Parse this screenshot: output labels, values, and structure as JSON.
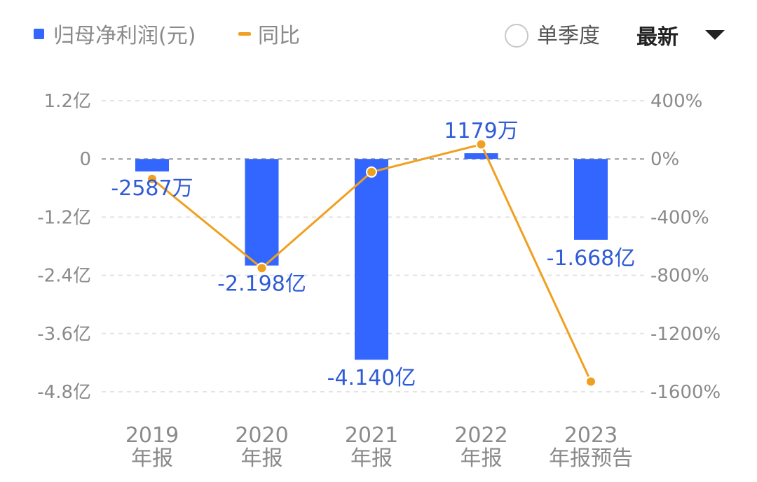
{
  "legend": {
    "bar_series_label": "归母净利润(元)",
    "line_series_label": "同比"
  },
  "controls": {
    "single_quarter_label": "单季度",
    "latest_label": "最新",
    "dropdown_icon": "caret-down-icon"
  },
  "colors": {
    "bar": "#3366ff",
    "line": "#f0a020",
    "data_label": "#2f5bd6"
  },
  "chart_data": {
    "type": "bar",
    "categories": [
      [
        "2019",
        "年报"
      ],
      [
        "2020",
        "年报"
      ],
      [
        "2021",
        "年报"
      ],
      [
        "2022",
        "年报"
      ],
      [
        "2023",
        "年报预告"
      ]
    ],
    "series": [
      {
        "name": "归母净利润(元)",
        "type": "bar",
        "axis": "left",
        "values": [
          -25870000,
          -219800000,
          -414000000,
          11790000,
          -166800000
        ],
        "labels": [
          "-2587万",
          "-2.198亿",
          "-4.140亿",
          "1179万",
          "-1.668亿"
        ]
      },
      {
        "name": "同比",
        "type": "line",
        "axis": "right",
        "values": [
          -137,
          -750,
          -90,
          100,
          -1530
        ]
      }
    ],
    "y_left": {
      "ylim": [
        -480000000,
        120000000
      ],
      "ticks": [
        120000000,
        0,
        -120000000,
        -240000000,
        -360000000,
        -480000000
      ],
      "tick_labels": [
        "1.2亿",
        "0",
        "-1.2亿",
        "-2.4亿",
        "-3.6亿",
        "-4.8亿"
      ]
    },
    "y_right": {
      "ylim": [
        -1600,
        400
      ],
      "ticks": [
        400,
        0,
        -400,
        -800,
        -1200,
        -1600
      ],
      "tick_labels": [
        "400%",
        "0%",
        "-400%",
        "-800%",
        "-1200%",
        "-1600%"
      ]
    },
    "grid": true,
    "legend_position": "top-left"
  }
}
